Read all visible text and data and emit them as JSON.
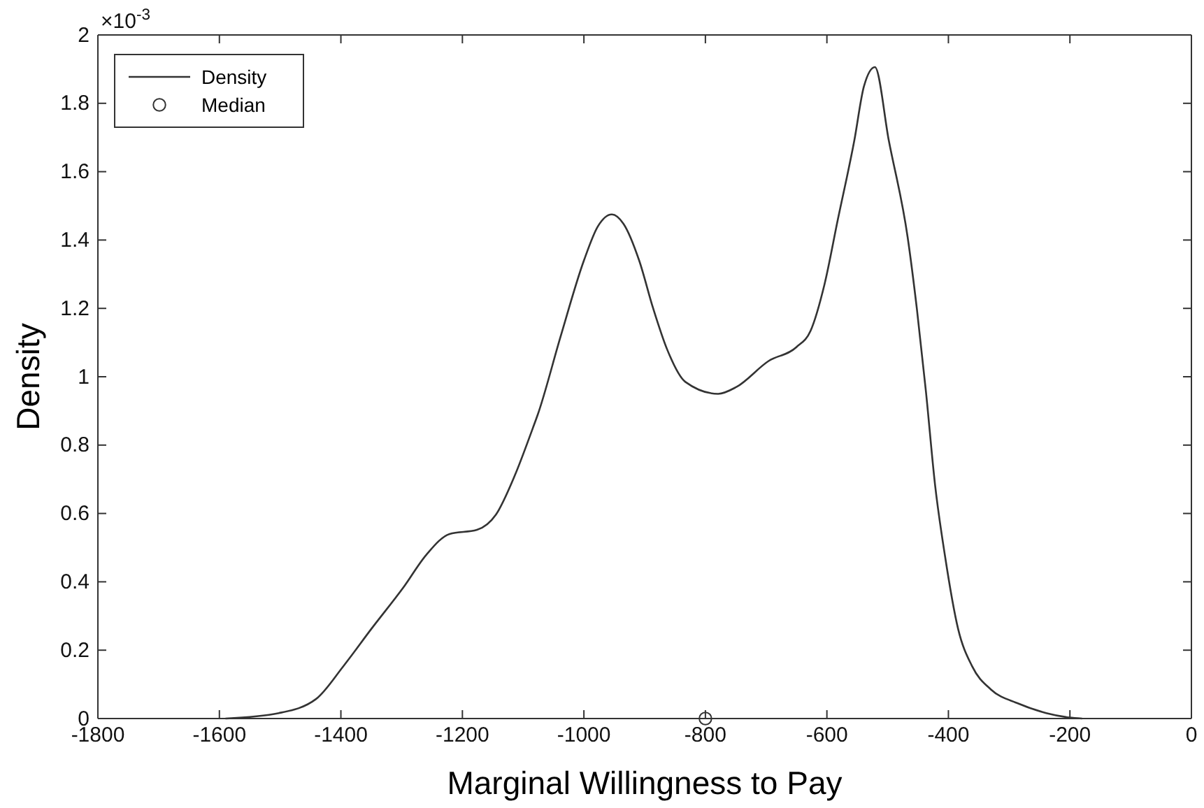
{
  "chart_data": {
    "type": "line",
    "xlabel": "Marginal Willingness to Pay",
    "ylabel": "Density",
    "annotations": [
      "×10$^{-3}$"
    ],
    "xlim": [
      -1800,
      0
    ],
    "xticks": [
      -1800,
      -1600,
      -1400,
      -1200,
      -1000,
      -800,
      -600,
      -400,
      -200,
      0
    ],
    "ylim": [
      0,
      2
    ],
    "yticks": [
      0,
      0.2,
      0.4,
      0.6,
      0.8,
      1,
      1.2,
      1.4,
      1.6,
      1.8,
      2
    ],
    "legend": "top left",
    "grid": false,
    "series": [
      {
        "name": "Density",
        "color": "#333333",
        "marker": "none",
        "line_style": "solid",
        "x": [
          -1590,
          -1502,
          -1441,
          -1396,
          -1350,
          -1297,
          -1259,
          -1221,
          -1176,
          -1145,
          -1114,
          -1084,
          -1076,
          -1038,
          -1000,
          -977,
          -954,
          -935,
          -909,
          -886,
          -863,
          -833,
          -779,
          -749,
          -696,
          -650,
          -627,
          -604,
          -582,
          -555,
          -539,
          -521,
          -498,
          -467,
          -452,
          -437,
          -422,
          -406,
          -384,
          -361,
          -330,
          -285,
          -239,
          -201,
          -180
        ],
        "values": [
          0,
          0.016,
          0.057,
          0.153,
          0.262,
          0.384,
          0.48,
          0.54,
          0.552,
          0.596,
          0.71,
          0.85,
          0.889,
          1.12,
          1.34,
          1.44,
          1.475,
          1.448,
          1.34,
          1.2,
          1.08,
          0.985,
          0.95,
          0.97,
          1.046,
          1.087,
          1.134,
          1.27,
          1.46,
          1.69,
          1.85,
          1.906,
          1.69,
          1.407,
          1.2,
          0.957,
          0.684,
          0.48,
          0.262,
          0.153,
          0.085,
          0.044,
          0.016,
          0.003,
          0
        ]
      },
      {
        "name": "Median",
        "type": "scatter",
        "color": "#333333",
        "marker": "circle",
        "x": [
          -800
        ],
        "values": [
          0
        ]
      }
    ]
  }
}
